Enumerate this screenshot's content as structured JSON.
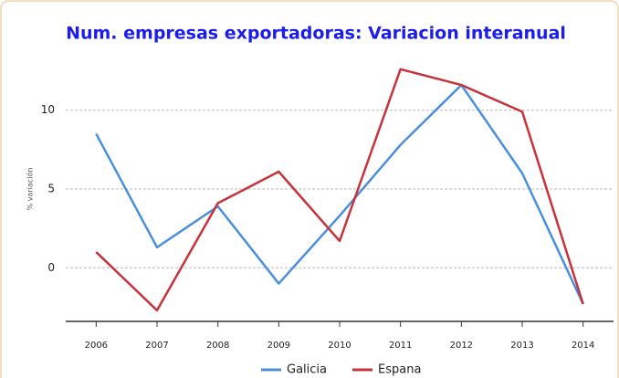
{
  "chart_data": {
    "type": "line",
    "title": "Num. empresas exportadoras: Variacion interanual",
    "y_label": "% variación",
    "categories": [
      "2006",
      "2007",
      "2008",
      "2009",
      "2010",
      "2011",
      "2012",
      "2013",
      "2014"
    ],
    "series": [
      {
        "name": "Galicia",
        "color": "#4a8fdd",
        "values": [
          8.5,
          1.3,
          3.9,
          -1.0,
          3.3,
          7.8,
          11.6,
          6.0,
          -2.3
        ]
      },
      {
        "name": "Espana",
        "color": "#c8323a",
        "values": [
          1.0,
          -2.7,
          4.1,
          6.1,
          1.7,
          12.6,
          11.6,
          9.9,
          -2.3
        ]
      }
    ],
    "ylim": [
      -3.4,
      13.4
    ],
    "yticks": [
      0,
      5,
      10
    ],
    "grid": true,
    "legend": "bottom"
  }
}
